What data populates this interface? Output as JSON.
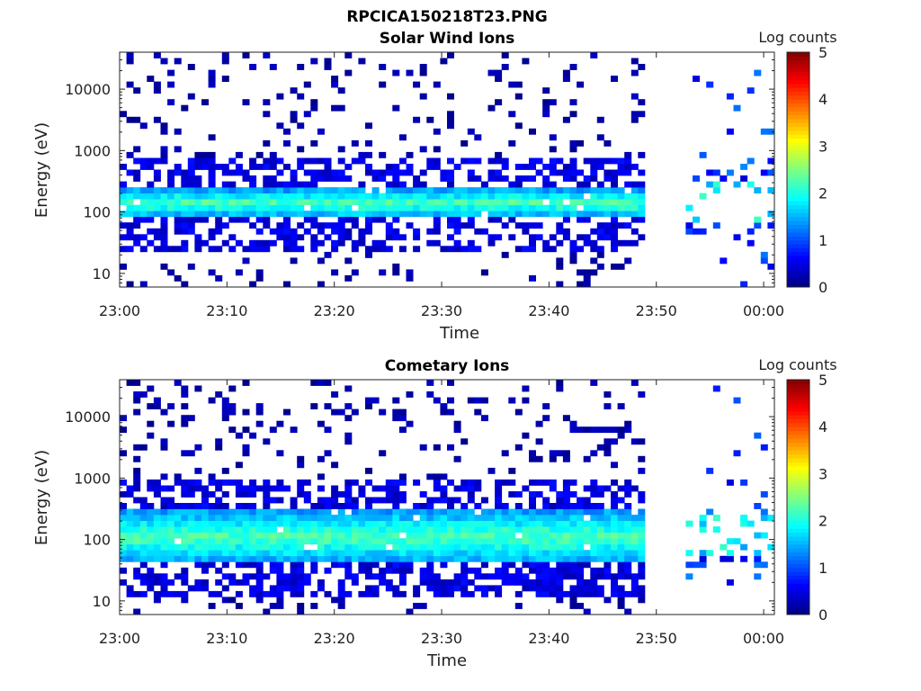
{
  "figure_title": "RPCICA150218T23.PNG",
  "chart_data": [
    {
      "type": "heatmap",
      "title": "Solar Wind Ions",
      "xlabel": "Time",
      "ylabel": "Energy (eV)",
      "x_tick_labels": [
        "23:00",
        "23:10",
        "23:20",
        "23:30",
        "23:40",
        "23:50",
        "00:00"
      ],
      "x_range": [
        "23:00",
        "00:01"
      ],
      "y_tick_labels": [
        "10",
        "100",
        "1000",
        "10000"
      ],
      "y_scale": "log",
      "y_range": [
        6,
        40000
      ],
      "colorbar": {
        "label": "Log counts",
        "tick_labels": [
          "0",
          "1",
          "2",
          "3",
          "4",
          "5"
        ],
        "range": [
          0,
          5
        ],
        "colormap": "jet"
      },
      "peak_energy_eV": 140,
      "data_gap": [
        "23:49",
        "23:53"
      ]
    },
    {
      "type": "heatmap",
      "title": "Cometary Ions",
      "xlabel": "Time",
      "ylabel": "Energy (eV)",
      "x_tick_labels": [
        "23:00",
        "23:10",
        "23:20",
        "23:30",
        "23:40",
        "23:50",
        "00:00"
      ],
      "x_range": [
        "23:00",
        "00:01"
      ],
      "y_tick_labels": [
        "10",
        "100",
        "1000",
        "10000"
      ],
      "y_scale": "log",
      "y_range": [
        6,
        40000
      ],
      "colorbar": {
        "label": "Log counts",
        "tick_labels": [
          "0",
          "1",
          "2",
          "3",
          "4",
          "5"
        ],
        "range": [
          0,
          5
        ],
        "colormap": "jet"
      },
      "peak_energy_eV": 110,
      "data_gap": [
        "23:49",
        "23:53"
      ]
    }
  ]
}
